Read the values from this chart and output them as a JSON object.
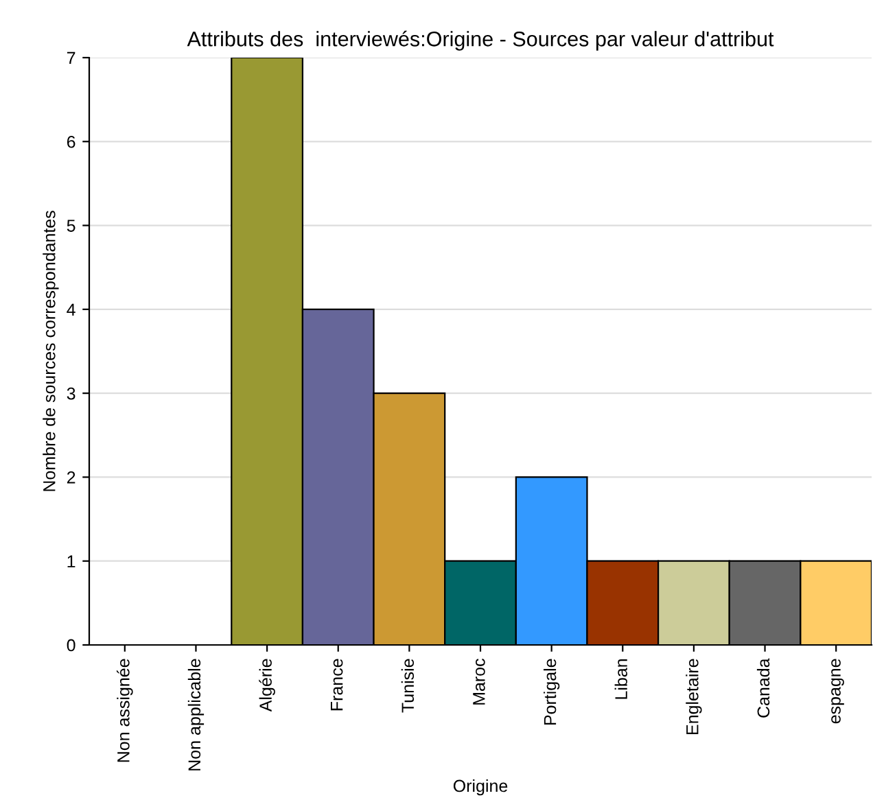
{
  "chart_data": {
    "type": "bar",
    "title": "Attributs des  interviewés:Origine - Sources par valeur d'attribut",
    "xlabel": "Origine",
    "ylabel": "Nombre de sources correspondantes",
    "categories": [
      "Non assignée",
      "Non applicable",
      "Algérie",
      "France",
      "Tunisie",
      "Maroc",
      "Portigale",
      "Liban",
      "Engletaire",
      "Canada",
      "espagne"
    ],
    "values": [
      0,
      0,
      7,
      4,
      3,
      1,
      2,
      1,
      1,
      1,
      1
    ],
    "colors": [
      null,
      null,
      "#999933",
      "#666699",
      "#cc9933",
      "#006666",
      "#3399ff",
      "#993300",
      "#cccc99",
      "#666666",
      "#ffcc66"
    ],
    "ylim": [
      0,
      7
    ],
    "yticks": [
      0,
      1,
      2,
      3,
      4,
      5,
      6,
      7
    ],
    "grid": "y"
  }
}
